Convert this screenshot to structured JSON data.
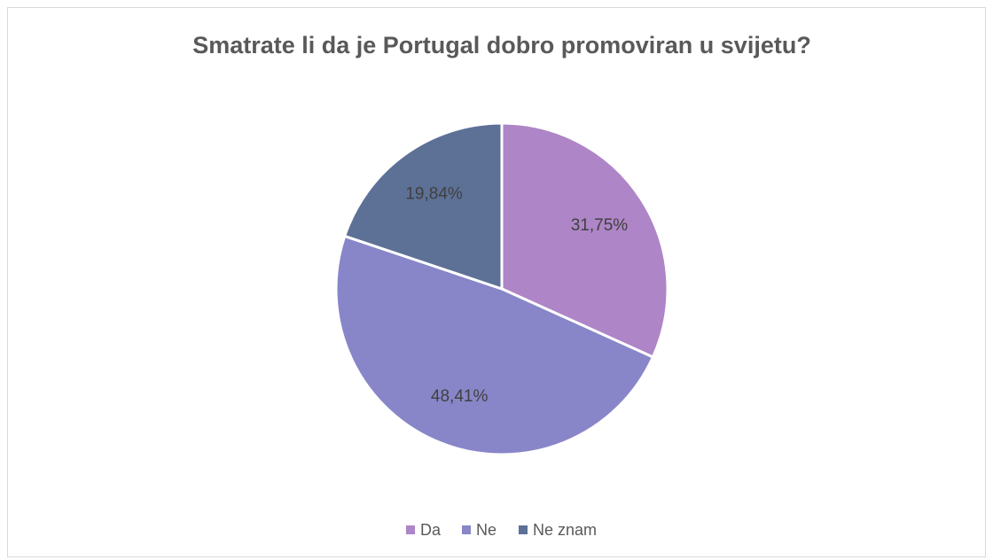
{
  "chart_data": {
    "type": "pie",
    "title": "Smatrate li da je Portugal dobro promoviran u svijetu?",
    "categories": [
      "Da",
      "Ne",
      "Ne znam"
    ],
    "values": [
      31.75,
      48.41,
      19.84
    ],
    "value_labels": [
      "31,75%",
      "48,41%",
      "19,84%"
    ],
    "colors": [
      "#ae85c7",
      "#8886c8",
      "#5d7096"
    ],
    "legend": "bottom"
  }
}
